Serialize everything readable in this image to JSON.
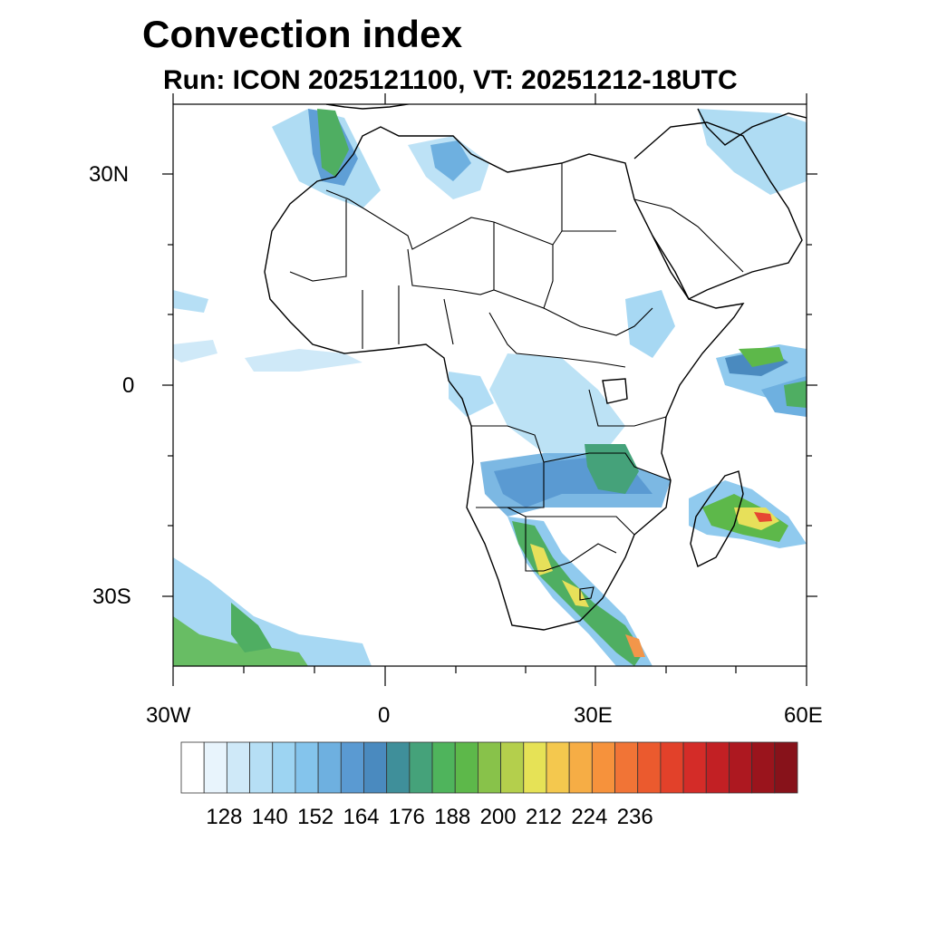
{
  "title": "Convection index",
  "subtitle": "Run: ICON 2025121100,  VT: 20251212-18UTC",
  "axes": {
    "lat_labels": [
      "30N",
      "0",
      "30S"
    ],
    "lon_labels": [
      "30W",
      "0",
      "30E",
      "60E"
    ]
  },
  "colorbar": {
    "labels": [
      "128",
      "140",
      "152",
      "164",
      "176",
      "188",
      "200",
      "212",
      "224",
      "236"
    ],
    "colors": [
      "#ffffff",
      "#e8f4fc",
      "#cfe9f8",
      "#b6dff5",
      "#9dd4f2",
      "#84c4ec",
      "#6eb0e0",
      "#5a9ad2",
      "#4a8abf",
      "#3f8f9a",
      "#45a27a",
      "#4fb45c",
      "#5db84a",
      "#88c24a",
      "#b4cf4c",
      "#e6e256",
      "#f4c84e",
      "#f6ad45",
      "#f6923c",
      "#f17436",
      "#eb5a2e",
      "#e2412a",
      "#d42c28",
      "#c22024",
      "#ad1820",
      "#9a141c",
      "#87121a"
    ]
  },
  "map_colors": {
    "light_blue": "#a6d8f2",
    "mid_blue": "#5f9fd6",
    "green": "#4fae62",
    "yellow": "#e7e05a",
    "orange": "#f2964a",
    "red": "#e64632"
  }
}
